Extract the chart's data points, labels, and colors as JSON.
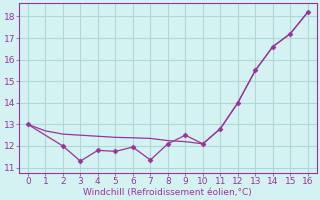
{
  "line1_x": [
    0,
    1,
    2,
    3,
    4,
    5,
    6,
    7,
    8,
    9,
    10,
    11,
    12,
    13,
    14,
    15,
    16
  ],
  "line1_y": [
    13.0,
    12.7,
    12.55,
    12.5,
    12.45,
    12.4,
    12.38,
    12.35,
    12.25,
    12.2,
    12.1,
    12.8,
    14.0,
    15.5,
    16.6,
    17.2,
    18.2
  ],
  "line2_x": [
    0,
    2,
    3,
    4,
    5,
    6,
    7,
    8,
    9,
    10,
    11,
    12,
    13,
    14,
    15,
    16
  ],
  "line2_y": [
    13.0,
    12.0,
    11.3,
    11.8,
    11.75,
    11.95,
    11.35,
    12.1,
    12.5,
    12.1,
    12.8,
    14.0,
    15.5,
    16.6,
    17.2,
    18.2
  ],
  "color": "#993399",
  "bg_color": "#d5f2f2",
  "grid_color": "#aed8d8",
  "xlabel": "Windchill (Refroidissement éolien,°C)",
  "xlim": [
    -0.5,
    16.5
  ],
  "ylim": [
    10.75,
    18.6
  ],
  "yticks": [
    11,
    12,
    13,
    14,
    15,
    16,
    17,
    18
  ],
  "xticks": [
    0,
    1,
    2,
    3,
    4,
    5,
    6,
    7,
    8,
    9,
    10,
    11,
    12,
    13,
    14,
    15,
    16
  ],
  "xlabel_fontsize": 6.5,
  "tick_fontsize": 6.5,
  "marker_size": 2.5
}
